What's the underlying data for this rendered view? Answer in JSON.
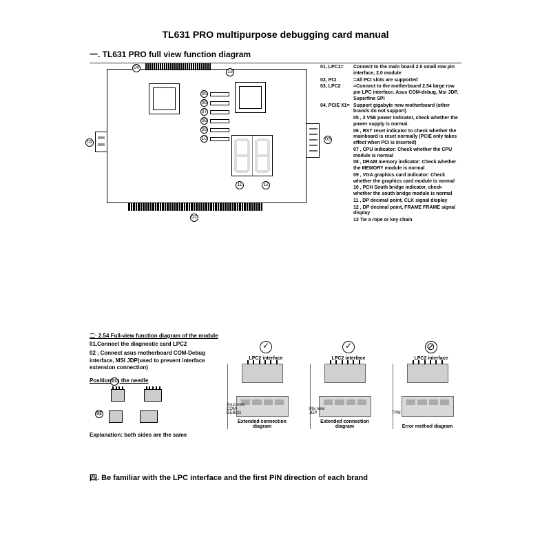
{
  "title": "TL631 PRO multipurpose debugging card manual",
  "sec1_hdr": "一. TL631 PRO full view function diagram",
  "legend": [
    {
      "k": "01, LPC1=",
      "v": "Connect to the main board 2.0 small row pin interface, 2.0 module"
    },
    {
      "k": "02, PCI",
      "v": "=All PCI slots are supported"
    },
    {
      "k": "03, LPC2",
      "v": "=Connect to the motherboard 2.54 large row pin LPC interface. Asus COM-debug, Msi JDP, Superfine SPI"
    },
    {
      "k": "04, PCIE X1=",
      "v": "Support gigabyte new motherboard (other brands do not support)"
    },
    {
      "k": "",
      "v": "05 , 3 V5B power indicator, check whether the power supply is normal."
    },
    {
      "k": "",
      "v": "06 , RST reset indicator to check whether the mainboard is reset normally (PCIE only takes effect when PCI is inserted)"
    },
    {
      "k": "",
      "v": "07 , CPU indicator: Check whether the CPU module is normal"
    },
    {
      "k": "",
      "v": "08 , DRAM memory indicator: Check whether the MEMORY module is normal"
    },
    {
      "k": "",
      "v": "09 , VGA graphics card indicator: Check whether the graphics card module is normal"
    },
    {
      "k": "",
      "v": "10 , PCH South bridge indicator, check whether the south bridge module is normal"
    },
    {
      "k": "",
      "v": "11 , DP decimal point, CLK signal display"
    },
    {
      "k": "",
      "v": "12 , DP decimal point, FRAME FRAME signal display"
    },
    {
      "k": "",
      "v": "13  Tie a rope or key chain"
    }
  ],
  "leds": [
    "05",
    "06",
    "07",
    "08",
    "09",
    "10"
  ],
  "board_nums": {
    "n01": "01",
    "n02": "02",
    "n03": "03",
    "n04": "04",
    "n11": "11",
    "n12": "12",
    "n13": "13"
  },
  "sec2_hdr": "二· 2.54 Full-view function diagram of the module",
  "inst1": "01,Connect the diagnostic card LPC2",
  "inst2": "02 , Connect asus motherboard COM-Debug interface, MSI JDP(used to prevent interface extension connection)",
  "needle": "Positioning the needle",
  "expl": "Explanation: both sides are the same",
  "n_s1": "01",
  "n_s2": "02",
  "mod": {
    "iface": "LPC2 interface",
    "cap1": "Extended connection diagram",
    "cap2": "Error method diagram",
    "b1": "Asus new COM-DEBUG",
    "b2": "Msi new JDP",
    "b3": "TPM"
  },
  "sec4": "四. Be familiar with the LPC interface and the first PIN direction of each brand"
}
